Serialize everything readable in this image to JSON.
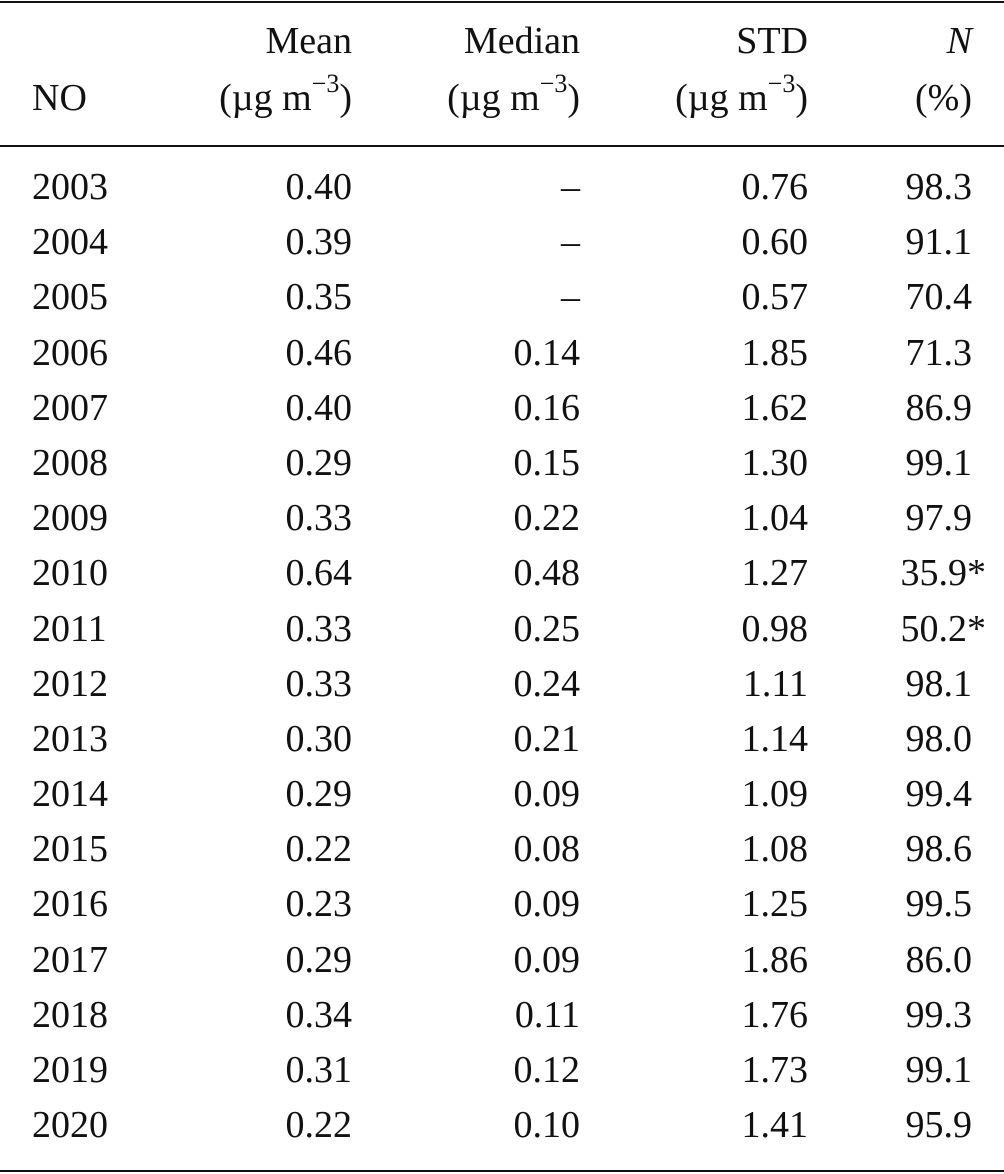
{
  "table": {
    "headers": {
      "no": "NO",
      "mean": {
        "line1": "Mean",
        "line2_pre": "(µg m",
        "line2_sup": "−3",
        "line2_post": ")"
      },
      "median": {
        "line1": "Median",
        "line2_pre": "(µg m",
        "line2_sup": "−3",
        "line2_post": ")"
      },
      "std": {
        "line1": "STD",
        "line2_pre": "(µg m",
        "line2_sup": "−3",
        "line2_post": ")"
      },
      "n": {
        "line1": "N",
        "line2": "(%)"
      }
    },
    "rows": [
      {
        "year": "2003",
        "mean": "0.40",
        "median": "–",
        "std": "0.76",
        "n": "98.3"
      },
      {
        "year": "2004",
        "mean": "0.39",
        "median": "–",
        "std": "0.60",
        "n": "91.1"
      },
      {
        "year": "2005",
        "mean": "0.35",
        "median": "–",
        "std": "0.57",
        "n": "70.4"
      },
      {
        "year": "2006",
        "mean": "0.46",
        "median": "0.14",
        "std": "1.85",
        "n": "71.3"
      },
      {
        "year": "2007",
        "mean": "0.40",
        "median": "0.16",
        "std": "1.62",
        "n": "86.9"
      },
      {
        "year": "2008",
        "mean": "0.29",
        "median": "0.15",
        "std": "1.30",
        "n": "99.1"
      },
      {
        "year": "2009",
        "mean": "0.33",
        "median": "0.22",
        "std": "1.04",
        "n": "97.9"
      },
      {
        "year": "2010",
        "mean": "0.64",
        "median": "0.48",
        "std": "1.27",
        "n": "35.9*"
      },
      {
        "year": "2011",
        "mean": "0.33",
        "median": "0.25",
        "std": "0.98",
        "n": "50.2*"
      },
      {
        "year": "2012",
        "mean": "0.33",
        "median": "0.24",
        "std": "1.11",
        "n": "98.1"
      },
      {
        "year": "2013",
        "mean": "0.30",
        "median": "0.21",
        "std": "1.14",
        "n": "98.0"
      },
      {
        "year": "2014",
        "mean": "0.29",
        "median": "0.09",
        "std": "1.09",
        "n": "99.4"
      },
      {
        "year": "2015",
        "mean": "0.22",
        "median": "0.08",
        "std": "1.08",
        "n": "98.6"
      },
      {
        "year": "2016",
        "mean": "0.23",
        "median": "0.09",
        "std": "1.25",
        "n": "99.5"
      },
      {
        "year": "2017",
        "mean": "0.29",
        "median": "0.09",
        "std": "1.86",
        "n": "86.0"
      },
      {
        "year": "2018",
        "mean": "0.34",
        "median": "0.11",
        "std": "1.76",
        "n": "99.3"
      },
      {
        "year": "2019",
        "mean": "0.31",
        "median": "0.12",
        "std": "1.73",
        "n": "99.1"
      },
      {
        "year": "2020",
        "mean": "0.22",
        "median": "0.10",
        "std": "1.41",
        "n": "95.9"
      }
    ]
  }
}
